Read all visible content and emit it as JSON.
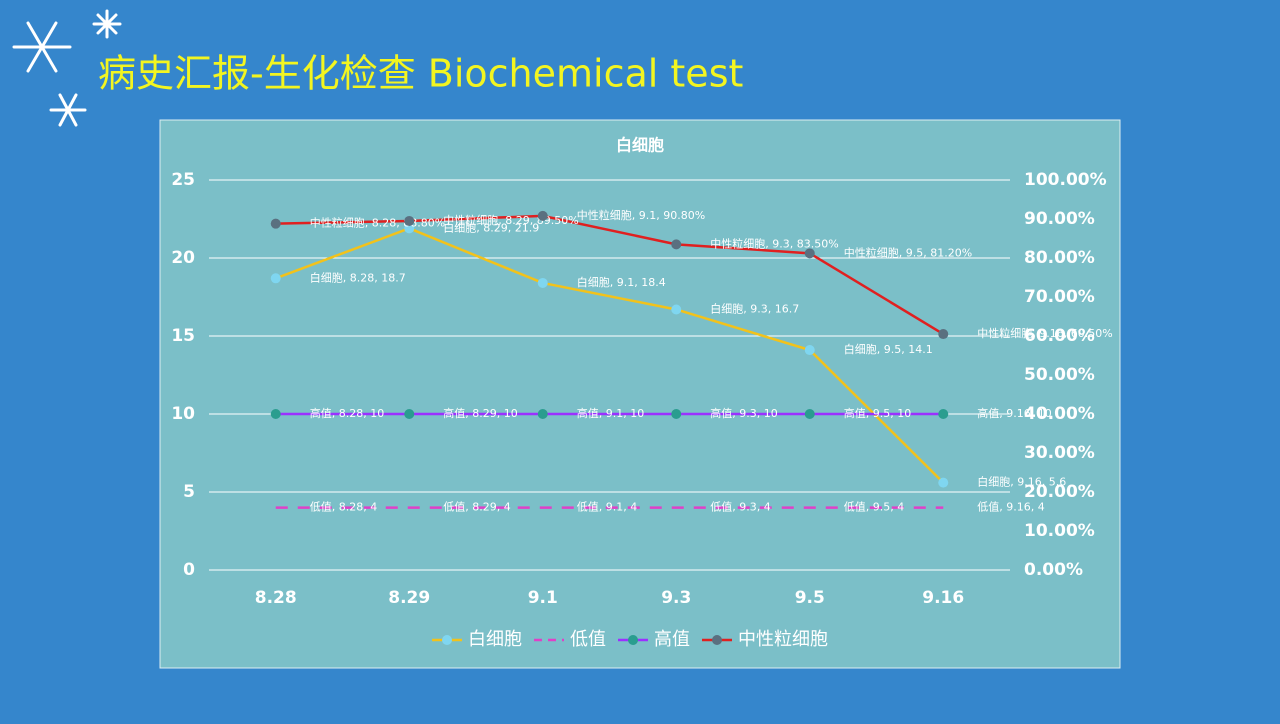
{
  "slide_title": "病史汇报-生化检查 Biochemical test",
  "chart_data": {
    "type": "line",
    "title": "白细胞",
    "categories": [
      "8.28",
      "8.29",
      "9.1",
      "9.3",
      "9.5",
      "9.16"
    ],
    "ylim": [
      0,
      25
    ],
    "yticks": [
      0,
      5,
      10,
      15,
      20,
      25
    ],
    "y2lim": [
      0,
      100
    ],
    "y2ticks": [
      {
        "value": 0,
        "label": "0.00%"
      },
      {
        "value": 10,
        "label": "10.00%"
      },
      {
        "value": 20,
        "label": "20.00%"
      },
      {
        "value": 30,
        "label": "30.00%"
      },
      {
        "value": 40,
        "label": "40.00%"
      },
      {
        "value": 50,
        "label": "50.00%"
      },
      {
        "value": 60,
        "label": "60.00%"
      },
      {
        "value": 70,
        "label": "70.00%"
      },
      {
        "value": 80,
        "label": "80.00%"
      },
      {
        "value": 90,
        "label": "90.00%"
      },
      {
        "value": 100,
        "label": "100.00%"
      }
    ],
    "grid": true,
    "legend": "bottom",
    "series": [
      {
        "name": "白细胞",
        "color": "#f2c21b",
        "marker_color": "#7fd6f0",
        "dashed": false,
        "values": [
          18.7,
          21.9,
          18.4,
          16.7,
          14.1,
          5.6
        ],
        "value_labels": [
          "白细胞, 8.28, 18.7",
          "白细胞, 8.29, 21.9",
          "白细胞, 9.1, 18.4",
          "白细胞, 9.3, 16.7",
          "白细胞, 9.5, 14.1",
          "白细胞, 9.16, 5.6"
        ]
      },
      {
        "name": "低值",
        "color": "#e040c8",
        "dashed": true,
        "values": [
          4,
          4,
          4,
          4,
          4,
          4
        ],
        "value_labels": [
          "低值, 8.28, 4",
          "低值, 8.29, 4",
          "低值, 9.1, 4",
          "低值, 9.3, 4",
          "低值, 9.5, 4",
          "低值, 9.16, 4"
        ]
      },
      {
        "name": "高值",
        "color": "#9b30ff",
        "marker_color": "#2a9d8f",
        "dashed": false,
        "values": [
          10,
          10,
          10,
          10,
          10,
          10
        ],
        "value_labels": [
          "高值, 8.28, 10",
          "高值, 8.29, 10",
          "高值, 9.1, 10",
          "高值, 9.3, 10",
          "高值, 9.5, 10",
          "高值, 9.16, 10"
        ]
      },
      {
        "name": "中性粒细胞",
        "color": "#e02020",
        "marker_color": "#5a7080",
        "dashed": false,
        "axis": "y2",
        "values": [
          88.8,
          89.5,
          90.8,
          83.5,
          81.2,
          60.5
        ],
        "value_labels": [
          "中性粒细胞, 8.28, 88.80%",
          "中性粒细胞, 8.29, 89.50%",
          "中性粒细胞, 9.1, 90.80%",
          "中性粒细胞, 9.3, 83.50%",
          "中性粒细胞, 9.5, 81.20%",
          "中性粒细胞, 9.16, 60.50%"
        ]
      }
    ]
  }
}
